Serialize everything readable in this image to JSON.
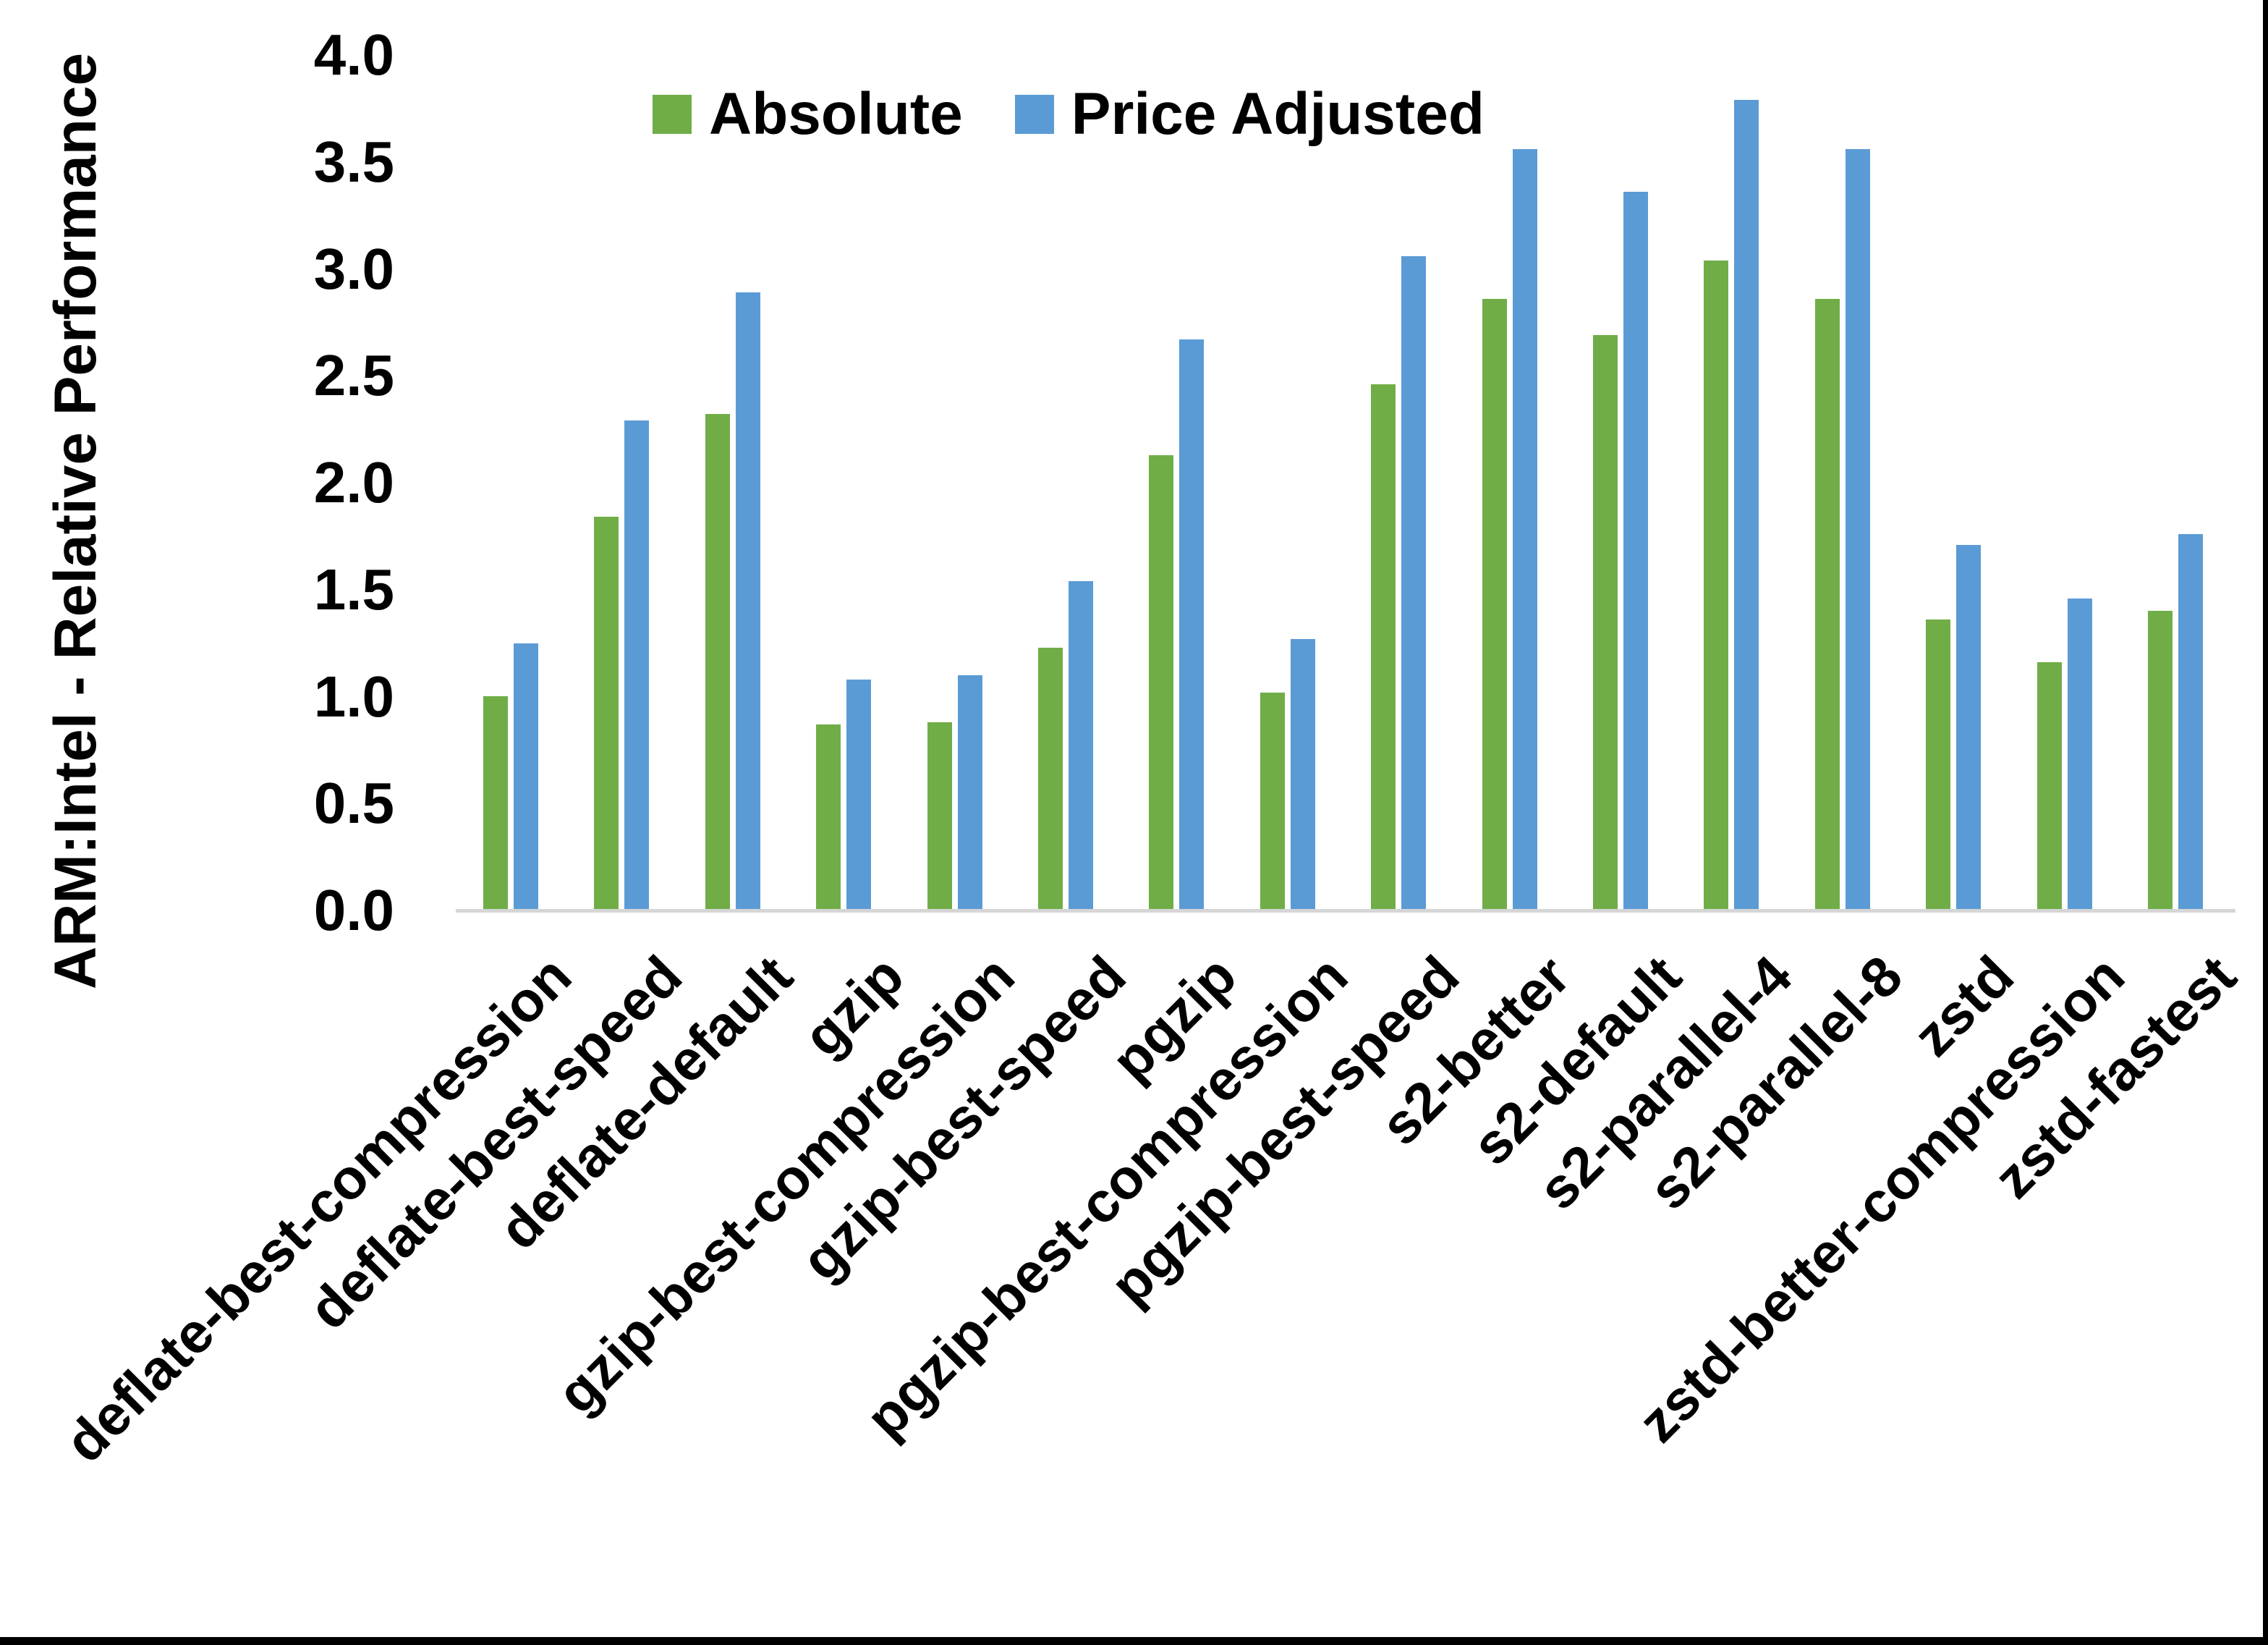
{
  "chart_data": {
    "type": "bar",
    "title": "",
    "xlabel": "",
    "ylabel": "ARM:Intel - Relative Performance",
    "ylim": [
      0.0,
      4.0
    ],
    "ytick_step": 0.5,
    "yticks": [
      "4.0",
      "3.5",
      "3.0",
      "2.5",
      "2.0",
      "1.5",
      "1.0",
      "0.5",
      "0.0"
    ],
    "grid": false,
    "legend_position": "top-center",
    "x_label_rotation_degrees": 45,
    "categories": [
      "deflate-best-compression",
      "deflate-best-speed",
      "deflate-default",
      "gzip",
      "gzip-best-compression",
      "gzip-best-speed",
      "pgzip",
      "pgzip-best-compression",
      "pgzip-best-speed",
      "s2-better",
      "s2-default",
      "s2-parallel-4",
      "s2-parallel-8",
      "zstd",
      "zstd-better-compression",
      "zstd-fastest"
    ],
    "series": [
      {
        "name": "Absolute",
        "color": "#70AD47",
        "values": [
          1.0,
          1.84,
          2.32,
          0.87,
          0.88,
          1.23,
          2.13,
          1.02,
          2.46,
          2.86,
          2.69,
          3.04,
          2.86,
          1.36,
          1.16,
          1.4
        ]
      },
      {
        "name": "Price Adjusted",
        "color": "#5B9BD5",
        "values": [
          1.25,
          2.29,
          2.89,
          1.08,
          1.1,
          1.54,
          2.67,
          1.27,
          3.06,
          3.56,
          3.36,
          3.79,
          3.56,
          1.71,
          1.46,
          1.76
        ]
      }
    ]
  },
  "colors": {
    "background": "#FFFFFF",
    "axis_line": "#D6D6D6",
    "text": "#000000",
    "frame_border": "#000000"
  }
}
